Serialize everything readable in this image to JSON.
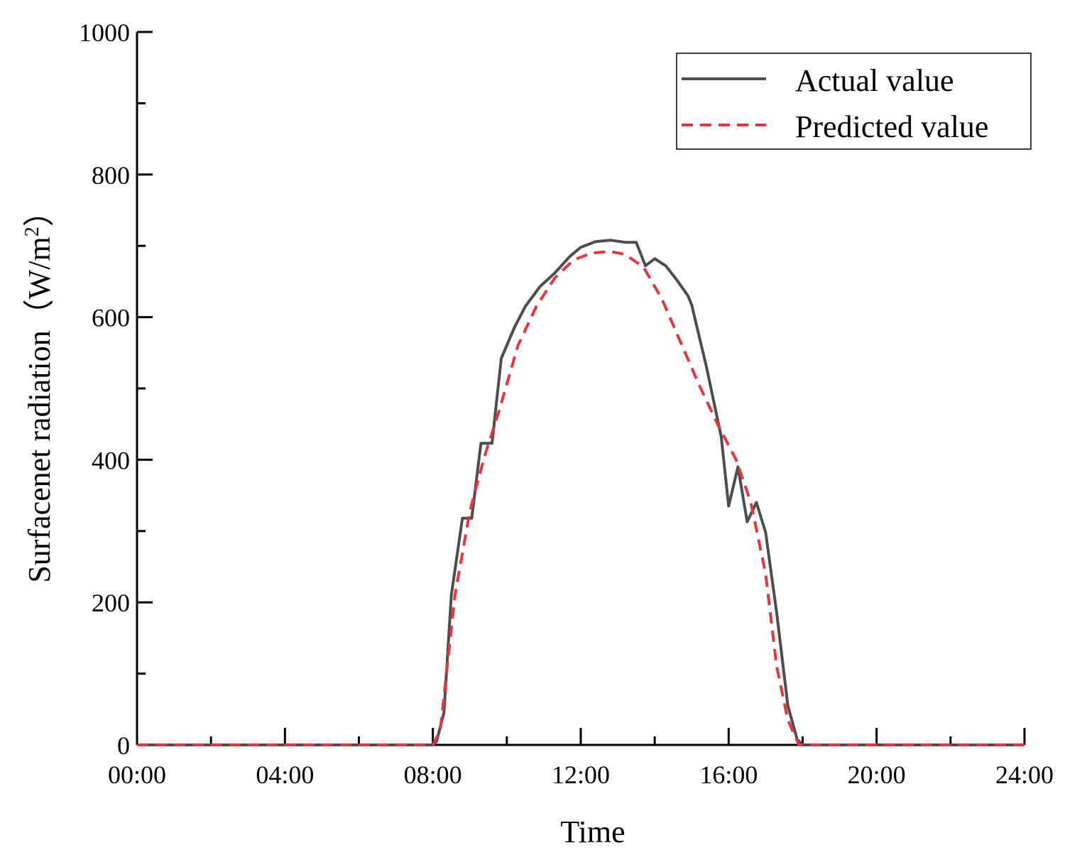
{
  "chart_data": {
    "type": "line",
    "title": "",
    "xlabel": "Time",
    "ylabel": "Surfacenet radiation（W/m",
    "ylabel_superscript": "2",
    "ylabel_close": "）",
    "x_unit": "hours",
    "xlim": [
      0,
      24
    ],
    "ylim": [
      0,
      1000
    ],
    "x_ticks": [
      "00:00",
      "04:00",
      "08:00",
      "12:00",
      "16:00",
      "20:00",
      "24:00"
    ],
    "y_ticks": [
      "0",
      "200",
      "400",
      "600",
      "800",
      "1000"
    ],
    "grid": false,
    "legend_position": "top-right",
    "series": [
      {
        "name": "Actual value",
        "color": "#4d4d4d",
        "style": "solid",
        "points": [
          [
            0,
            0
          ],
          [
            8.0,
            0
          ],
          [
            8.1,
            5
          ],
          [
            8.3,
            45
          ],
          [
            8.5,
            210
          ],
          [
            8.8,
            318
          ],
          [
            9.05,
            318
          ],
          [
            9.3,
            423
          ],
          [
            9.6,
            423
          ],
          [
            9.85,
            542
          ],
          [
            10.2,
            585
          ],
          [
            10.5,
            615
          ],
          [
            10.9,
            643
          ],
          [
            11.3,
            662
          ],
          [
            11.7,
            685
          ],
          [
            12.0,
            698
          ],
          [
            12.4,
            706
          ],
          [
            12.8,
            708
          ],
          [
            13.2,
            705
          ],
          [
            13.5,
            705
          ],
          [
            13.75,
            672
          ],
          [
            14.0,
            682
          ],
          [
            14.3,
            672
          ],
          [
            14.6,
            652
          ],
          [
            14.9,
            630
          ],
          [
            15.0,
            617
          ],
          [
            15.4,
            530
          ],
          [
            15.8,
            432
          ],
          [
            16.0,
            335
          ],
          [
            16.25,
            390
          ],
          [
            16.5,
            313
          ],
          [
            16.75,
            340
          ],
          [
            17.0,
            298
          ],
          [
            17.3,
            185
          ],
          [
            17.6,
            55
          ],
          [
            17.85,
            8
          ],
          [
            18.0,
            0
          ],
          [
            24,
            0
          ]
        ]
      },
      {
        "name": "Predicted value",
        "color": "#e8343d",
        "style": "dashed",
        "points": [
          [
            0,
            0
          ],
          [
            8.0,
            0
          ],
          [
            8.2,
            20
          ],
          [
            8.6,
            210
          ],
          [
            9.0,
            328
          ],
          [
            9.4,
            405
          ],
          [
            9.8,
            470
          ],
          [
            10.3,
            560
          ],
          [
            10.8,
            615
          ],
          [
            11.3,
            655
          ],
          [
            11.8,
            680
          ],
          [
            12.3,
            690
          ],
          [
            12.8,
            692
          ],
          [
            13.2,
            688
          ],
          [
            13.7,
            670
          ],
          [
            14.2,
            625
          ],
          [
            14.7,
            565
          ],
          [
            15.2,
            505
          ],
          [
            15.7,
            450
          ],
          [
            16.2,
            400
          ],
          [
            16.6,
            340
          ],
          [
            17.0,
            240
          ],
          [
            17.3,
            110
          ],
          [
            17.6,
            35
          ],
          [
            17.9,
            0
          ],
          [
            24,
            0
          ]
        ]
      }
    ]
  }
}
